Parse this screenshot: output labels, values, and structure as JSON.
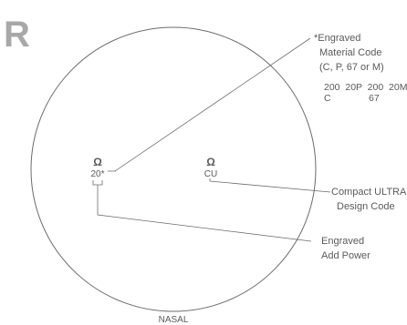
{
  "eye_letter": "R",
  "left_mark": {
    "symbol": "Ω",
    "code": "20*"
  },
  "right_mark": {
    "symbol": "Ω",
    "code": "CU"
  },
  "material_label": [
    "*Engraved",
    "Material Code",
    "(C, P, 67 or M)"
  ],
  "material_codes_row1": "200  20P  200  20M",
  "material_codes_row2": [
    "C",
    "67"
  ],
  "design_label": [
    "Compact ULTRA",
    "Design Code"
  ],
  "power_label": [
    "Engraved",
    "Add Power"
  ],
  "nasal_label": "NASAL",
  "colors": {
    "line": "#6b6b6b",
    "text": "#5a5a5a",
    "logo": "#a8a8a8"
  }
}
